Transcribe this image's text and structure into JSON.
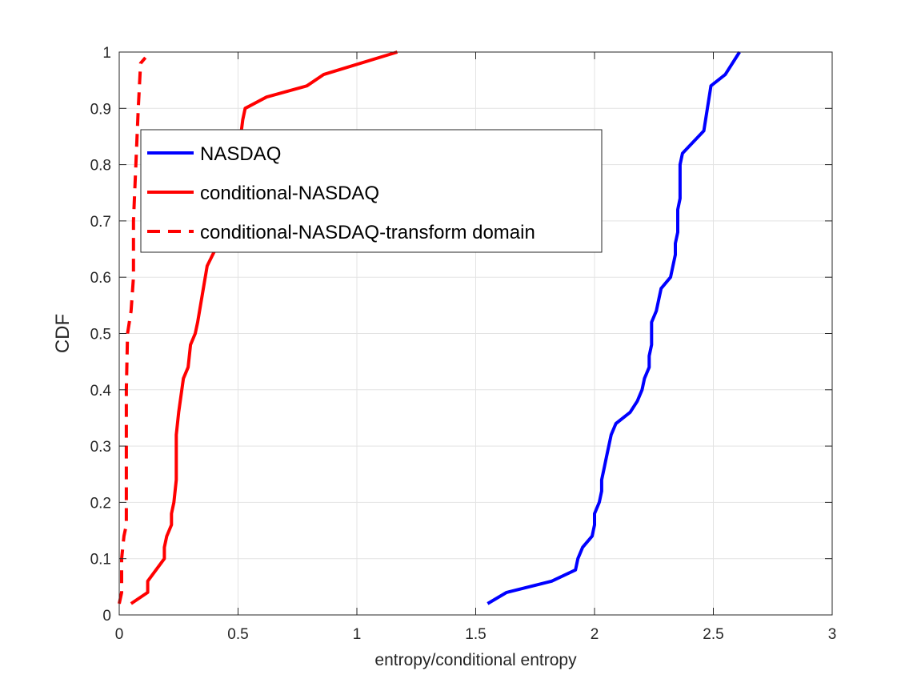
{
  "chart_data": {
    "type": "line",
    "title": "",
    "xlabel": "entropy/conditional entropy",
    "ylabel": "CDF",
    "xlim": [
      0,
      3
    ],
    "ylim": [
      0,
      1
    ],
    "xticks": [
      "0",
      "0.5",
      "1",
      "1.5",
      "2",
      "2.5",
      "3"
    ],
    "yticks": [
      "0",
      "0.1",
      "0.2",
      "0.3",
      "0.4",
      "0.5",
      "0.6",
      "0.7",
      "0.8",
      "0.9",
      "1"
    ],
    "grid": true,
    "legend_position": "top-left",
    "series": [
      {
        "name": "NASDAQ",
        "color": "#0000ff",
        "style": "solid",
        "points": [
          [
            1.55,
            0.02
          ],
          [
            1.63,
            0.04
          ],
          [
            1.82,
            0.06
          ],
          [
            1.92,
            0.08
          ],
          [
            1.93,
            0.1
          ],
          [
            1.95,
            0.12
          ],
          [
            1.99,
            0.14
          ],
          [
            2.0,
            0.16
          ],
          [
            2.0,
            0.18
          ],
          [
            2.02,
            0.2
          ],
          [
            2.03,
            0.22
          ],
          [
            2.03,
            0.24
          ],
          [
            2.04,
            0.26
          ],
          [
            2.05,
            0.28
          ],
          [
            2.06,
            0.3
          ],
          [
            2.07,
            0.32
          ],
          [
            2.09,
            0.34
          ],
          [
            2.15,
            0.36
          ],
          [
            2.18,
            0.38
          ],
          [
            2.2,
            0.4
          ],
          [
            2.21,
            0.42
          ],
          [
            2.23,
            0.44
          ],
          [
            2.23,
            0.46
          ],
          [
            2.24,
            0.48
          ],
          [
            2.24,
            0.5
          ],
          [
            2.24,
            0.52
          ],
          [
            2.26,
            0.54
          ],
          [
            2.27,
            0.56
          ],
          [
            2.28,
            0.58
          ],
          [
            2.32,
            0.6
          ],
          [
            2.33,
            0.62
          ],
          [
            2.34,
            0.64
          ],
          [
            2.34,
            0.66
          ],
          [
            2.35,
            0.68
          ],
          [
            2.35,
            0.7
          ],
          [
            2.35,
            0.72
          ],
          [
            2.36,
            0.74
          ],
          [
            2.36,
            0.76
          ],
          [
            2.36,
            0.78
          ],
          [
            2.36,
            0.8
          ],
          [
            2.37,
            0.82
          ],
          [
            2.46,
            0.86
          ],
          [
            2.49,
            0.94
          ],
          [
            2.55,
            0.96
          ],
          [
            2.61,
            1.0
          ]
        ]
      },
      {
        "name": "conditional-NASDAQ",
        "color": "#ff0000",
        "style": "solid",
        "points": [
          [
            0.05,
            0.02
          ],
          [
            0.12,
            0.04
          ],
          [
            0.12,
            0.06
          ],
          [
            0.19,
            0.1
          ],
          [
            0.19,
            0.12
          ],
          [
            0.2,
            0.14
          ],
          [
            0.22,
            0.16
          ],
          [
            0.22,
            0.18
          ],
          [
            0.23,
            0.2
          ],
          [
            0.24,
            0.24
          ],
          [
            0.24,
            0.28
          ],
          [
            0.24,
            0.32
          ],
          [
            0.25,
            0.36
          ],
          [
            0.27,
            0.42
          ],
          [
            0.29,
            0.44
          ],
          [
            0.3,
            0.48
          ],
          [
            0.32,
            0.5
          ],
          [
            0.33,
            0.52
          ],
          [
            0.37,
            0.62
          ],
          [
            0.44,
            0.68
          ],
          [
            0.49,
            0.78
          ],
          [
            0.52,
            0.88
          ],
          [
            0.53,
            0.9
          ],
          [
            0.62,
            0.92
          ],
          [
            0.79,
            0.94
          ],
          [
            0.86,
            0.96
          ],
          [
            1.17,
            1.0
          ]
        ]
      },
      {
        "name": "conditional-NASDAQ-transform domain",
        "color": "#ff0000",
        "style": "dashed",
        "points": [
          [
            0.0,
            0.02
          ],
          [
            0.01,
            0.04
          ],
          [
            0.01,
            0.1
          ],
          [
            0.02,
            0.14
          ],
          [
            0.03,
            0.16
          ],
          [
            0.03,
            0.2
          ],
          [
            0.03,
            0.3
          ],
          [
            0.03,
            0.4
          ],
          [
            0.035,
            0.5
          ],
          [
            0.05,
            0.54
          ],
          [
            0.06,
            0.6
          ],
          [
            0.06,
            0.7
          ],
          [
            0.07,
            0.8
          ],
          [
            0.08,
            0.9
          ],
          [
            0.09,
            0.98
          ],
          [
            0.11,
            0.99
          ]
        ]
      }
    ]
  }
}
